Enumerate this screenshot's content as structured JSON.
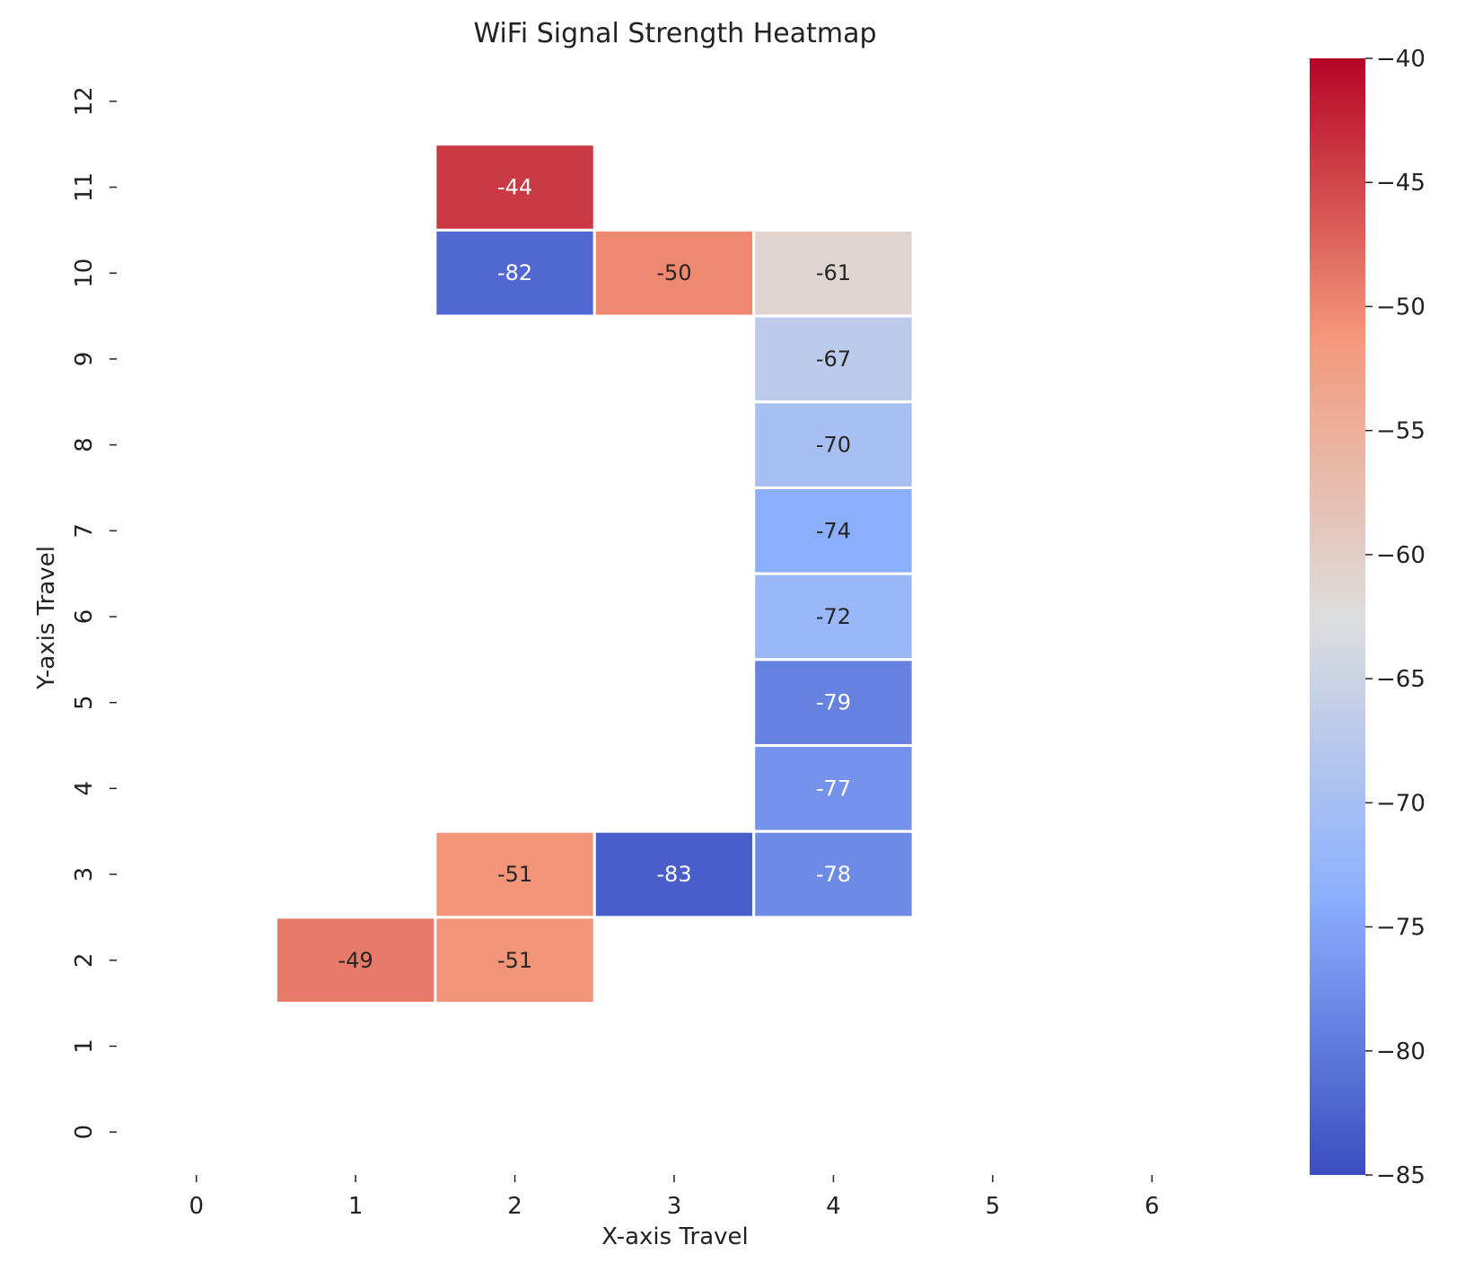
{
  "chart_data": {
    "type": "heatmap",
    "title": "WiFi Signal Strength Heatmap",
    "xlabel": "X-axis Travel",
    "ylabel": "Y-axis Travel",
    "x_ticks": [
      0,
      1,
      2,
      3,
      4,
      5,
      6
    ],
    "y_ticks": [
      0,
      1,
      2,
      3,
      4,
      5,
      6,
      7,
      8,
      9,
      10,
      11,
      12
    ],
    "xlim": [
      -0.5,
      6.5
    ],
    "ylim": [
      -0.5,
      12.5
    ],
    "colormap": "coolwarm",
    "color_range": [
      -85,
      -40
    ],
    "colorbar_ticks": [
      -40,
      -45,
      -50,
      -55,
      -60,
      -65,
      -70,
      -75,
      -80,
      -85
    ],
    "colorbar_tick_labels": [
      "−40",
      "−45",
      "−50",
      "−55",
      "−60",
      "−65",
      "−70",
      "−75",
      "−80",
      "−85"
    ],
    "cells": [
      {
        "x": 2,
        "y": 11,
        "value": -44,
        "label": "-44"
      },
      {
        "x": 2,
        "y": 10,
        "value": -82,
        "label": "-82"
      },
      {
        "x": 3,
        "y": 10,
        "value": -50,
        "label": "-50"
      },
      {
        "x": 4,
        "y": 10,
        "value": -61,
        "label": "-61"
      },
      {
        "x": 4,
        "y": 9,
        "value": -67,
        "label": "-67"
      },
      {
        "x": 4,
        "y": 8,
        "value": -70,
        "label": "-70"
      },
      {
        "x": 4,
        "y": 7,
        "value": -74,
        "label": "-74"
      },
      {
        "x": 4,
        "y": 6,
        "value": -72,
        "label": "-72"
      },
      {
        "x": 4,
        "y": 5,
        "value": -79,
        "label": "-79"
      },
      {
        "x": 4,
        "y": 4,
        "value": -77,
        "label": "-77"
      },
      {
        "x": 2,
        "y": 3,
        "value": -51,
        "label": "-51"
      },
      {
        "x": 3,
        "y": 3,
        "value": -83,
        "label": "-83"
      },
      {
        "x": 4,
        "y": 3,
        "value": -78,
        "label": "-78"
      },
      {
        "x": 1,
        "y": 2,
        "value": -49,
        "label": "-49"
      },
      {
        "x": 2,
        "y": 2,
        "value": -51,
        "label": "-51"
      }
    ],
    "grid": false,
    "legend": "none"
  }
}
